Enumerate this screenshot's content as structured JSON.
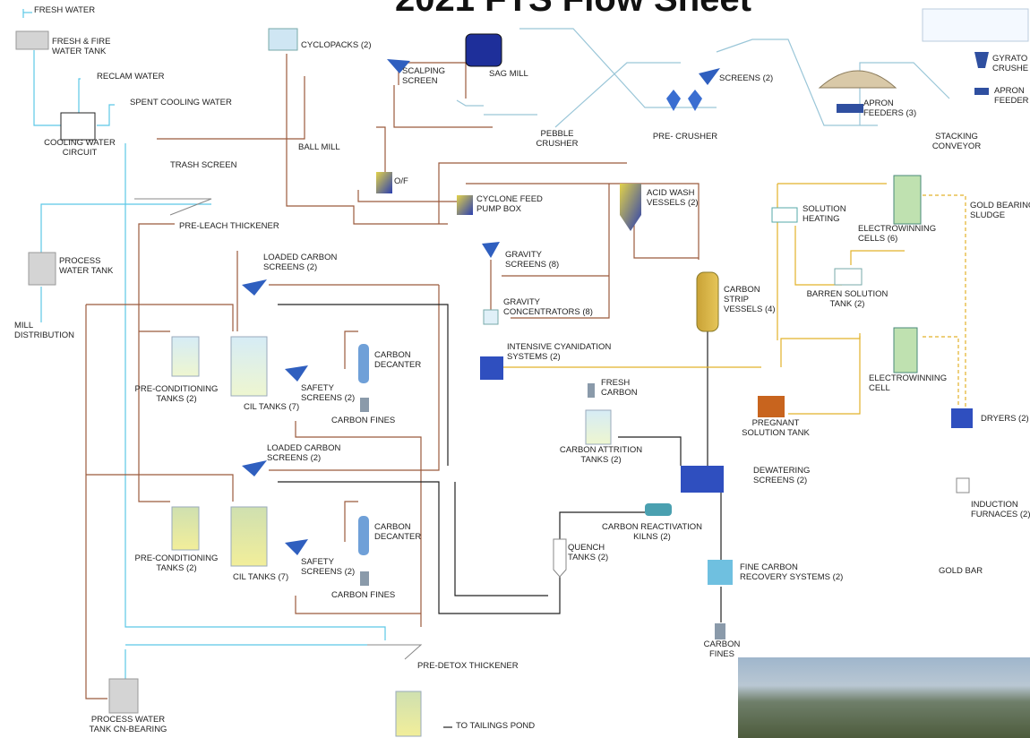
{
  "title": "2021 FTS Flow Sheet",
  "labels": [
    [
      "FRESH WATER"
    ],
    [
      "FRESH & FIRE",
      "WATER TANK"
    ],
    [
      "RECLAM WATER"
    ],
    [
      "SPENT COOLING WATER"
    ],
    [
      "COOLING WATER",
      "CIRCUIT"
    ],
    [
      "CYCLOPACKS (2)"
    ],
    [
      "SCALPING",
      "SCREEN"
    ],
    [
      "SAG MILL"
    ],
    [
      "PEBBLE",
      "CRUSHER"
    ],
    [
      "PRE- CRUSHER"
    ],
    [
      "SCREENS (2)"
    ],
    [
      "APRON",
      "FEEDERS (3)"
    ],
    [
      "STACKING",
      "CONVEYOR"
    ],
    [
      "GYRATO",
      "CRUSHE"
    ],
    [
      "APRON",
      "FEEDER"
    ],
    [
      "BALL MILL"
    ],
    [
      "TRASH SCREEN"
    ],
    [
      "O/F"
    ],
    [
      "CYCLONE FEED",
      "PUMP BOX"
    ],
    [
      "ACID WASH",
      "VESSELS (2)"
    ],
    [
      "SOLUTION",
      "HEATING"
    ],
    [
      "ELECTROWINNING",
      "CELLS (6)"
    ],
    [
      "GOLD BEARING",
      "SLUDGE"
    ],
    [
      "PRE-LEACH  THICKENER"
    ],
    [
      "PROCESS",
      "WATER TANK"
    ],
    [
      "LOADED CARBON",
      "SCREENS (2)"
    ],
    [
      "GRAVITY",
      "SCREENS (8)"
    ],
    [
      "CARBON",
      "STRIP",
      "VESSELS (4)"
    ],
    [
      "BARREN SOLUTION",
      "TANK (2)"
    ],
    [
      "GRAVITY",
      "CONCENTRATORS  (8)"
    ],
    [
      "MILL",
      "DISTRIBUTION"
    ],
    [
      "INTENSIVE CYANIDATION",
      "SYSTEMS (2)"
    ],
    [
      "CARBON",
      "DECANTER"
    ],
    [
      "ELECTROWINNING",
      "CELL"
    ],
    [
      "PRE-CONDITIONING",
      "TANKS (2)"
    ],
    [
      "CIL TANKS (7)"
    ],
    [
      "SAFETY",
      "SCREENS (2)"
    ],
    [
      "FRESH",
      "CARBON"
    ],
    [
      "CARBON FINES"
    ],
    [
      "PREGNANT",
      "SOLUTION TANK"
    ],
    [
      "DRYERS (2)"
    ],
    [
      "LOADED CARBON",
      "SCREENS (2)"
    ],
    [
      "CARBON ATTRITION",
      "TANKS (2)"
    ],
    [
      "DEWATERING",
      "SCREENS (2)"
    ],
    [
      "INDUCTION",
      "FURNACES (2)"
    ],
    [
      "CARBON",
      "DECANTER"
    ],
    [
      "CARBON REACTIVATION",
      "KILNS (2)"
    ],
    [
      "PRE-CONDITIONING",
      "TANKS (2)"
    ],
    [
      "SAFETY",
      "SCREENS (2)"
    ],
    [
      "QUENCH",
      "TANKS (2)"
    ],
    [
      "FINE CARBON",
      "RECOVERY SYSTEMS (2)"
    ],
    [
      "GOLD BAR"
    ],
    [
      "CIL TANKS (7)"
    ],
    [
      "CARBON FINES"
    ],
    [
      "CARBON",
      "FINES"
    ],
    [
      "PRE-DETOX THICKENER"
    ],
    [
      "PROCESS WATER",
      "TANK CN-BEARING"
    ],
    [
      "TO TAILINGS POND"
    ]
  ]
}
